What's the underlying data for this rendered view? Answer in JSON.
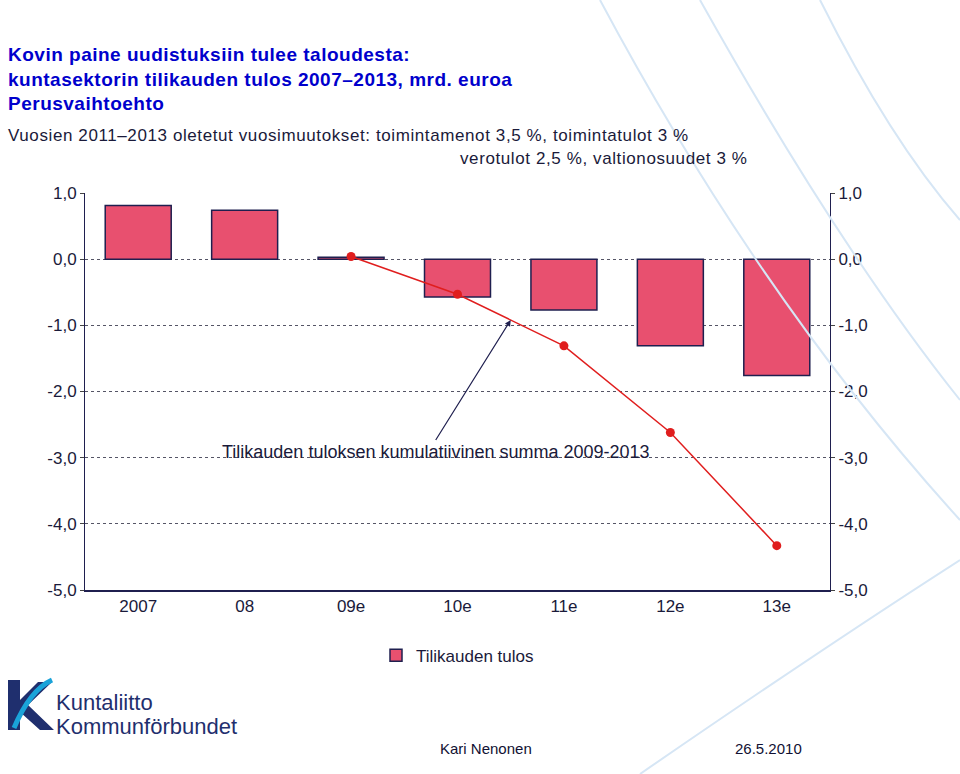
{
  "chart_data": {
    "type": "bar",
    "title": [
      "Kovin paine uudistuksiin tulee taloudesta:",
      "kuntasektorin tilikauden tulos 2007–2013, mrd. euroa",
      "Perusvaihtoehto"
    ],
    "subtitle": [
      "Vuosien 2011–2013 oletetut vuosimuutokset: toimintamenot 3,5 %, toimintatulot 3 %",
      "verotulot 2,5 %, valtionosuudet 3 %"
    ],
    "categories": [
      "2007",
      "08",
      "09e",
      "10e",
      "11e",
      "12e",
      "13e"
    ],
    "series": [
      {
        "name": "Tilikauden tulos",
        "type": "bar",
        "color": "#e8506f",
        "values": [
          0.81,
          0.74,
          0.03,
          -0.57,
          -0.77,
          -1.31,
          -1.76
        ]
      },
      {
        "name": "Tilikauden tuloksen kumulatiivinen summa 2009-2013",
        "type": "line",
        "color": "#e01e1e",
        "marker": "circle",
        "axis": "y2",
        "values": [
          null,
          null,
          0.04,
          -0.53,
          -1.31,
          -2.62,
          -4.33
        ]
      }
    ],
    "ylim": [
      -5,
      1
    ],
    "yticks": [
      {
        "value": 1,
        "label": "1,0"
      },
      {
        "value": 0,
        "label": "0,0"
      },
      {
        "value": -1,
        "label": "-1,0"
      },
      {
        "value": -2,
        "label": "-2,0"
      },
      {
        "value": -3,
        "label": "-3,0"
      },
      {
        "value": -4,
        "label": "-4,0"
      },
      {
        "value": -5,
        "label": "-5,0"
      }
    ],
    "y2lim": [
      -5,
      1
    ],
    "y2ticks": [
      {
        "value": 1,
        "label": "1,0"
      },
      {
        "value": 0,
        "label": "0,0"
      },
      {
        "value": -1,
        "label": "-1,0"
      },
      {
        "value": -2,
        "label": "-2,0"
      },
      {
        "value": -3,
        "label": "-3,0"
      },
      {
        "value": -4,
        "label": "-4,0"
      },
      {
        "value": -5,
        "label": "-5,0"
      }
    ],
    "grid": true,
    "legend": "bottom",
    "footer": {
      "logo": [
        "Kuntaliitto",
        "Kommunförbundet"
      ],
      "author": "Kari Nenonen",
      "date": "26.5.2010"
    }
  }
}
